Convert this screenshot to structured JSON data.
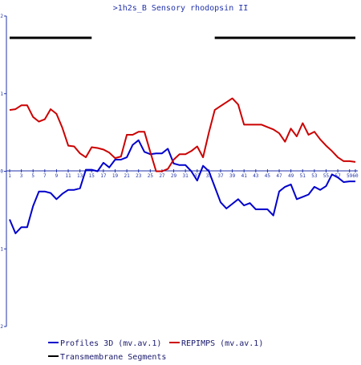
{
  "chart_data": {
    "type": "line",
    "title": ">1h2s_B Sensory rhodopsin II",
    "xlabel": "",
    "ylabel": "",
    "x_ticks": [
      "1",
      "3",
      "5",
      "7",
      "9",
      "11",
      "13",
      "15",
      "17",
      "19",
      "21",
      "23",
      "25",
      "27",
      "29",
      "31",
      "33",
      "35",
      "37",
      "39",
      "41",
      "43",
      "45",
      "47",
      "49",
      "51",
      "53",
      "55",
      "57",
      "59",
      "60"
    ],
    "xlim": [
      1,
      60
    ],
    "ylim": [
      -2,
      2
    ],
    "y_ticks": [
      "2",
      "1",
      "0",
      "-1",
      "-2"
    ],
    "grid": false,
    "legend_position": "bottom-left",
    "series": [
      {
        "name": "Profiles 3D (mv.av.1)",
        "color": "#0000cc",
        "points": [
          [
            1,
            -0.62
          ],
          [
            2,
            -0.8
          ],
          [
            3,
            -0.72
          ],
          [
            4,
            -0.72
          ],
          [
            5,
            -0.45
          ],
          [
            6,
            -0.26
          ],
          [
            7,
            -0.26
          ],
          [
            8,
            -0.28
          ],
          [
            9,
            -0.36
          ],
          [
            10,
            -0.29
          ],
          [
            11,
            -0.24
          ],
          [
            12,
            -0.24
          ],
          [
            13,
            -0.22
          ],
          [
            14,
            0.02
          ],
          [
            15,
            0.02
          ],
          [
            16,
            0.0
          ],
          [
            17,
            0.11
          ],
          [
            18,
            0.05
          ],
          [
            19,
            0.15
          ],
          [
            20,
            0.15
          ],
          [
            21,
            0.18
          ],
          [
            22,
            0.34
          ],
          [
            23,
            0.4
          ],
          [
            24,
            0.25
          ],
          [
            25,
            0.22
          ],
          [
            26,
            0.23
          ],
          [
            27,
            0.23
          ],
          [
            28,
            0.29
          ],
          [
            29,
            0.1
          ],
          [
            30,
            0.08
          ],
          [
            31,
            0.08
          ],
          [
            32,
            0.0
          ],
          [
            33,
            -0.12
          ],
          [
            34,
            0.07
          ],
          [
            35,
            0.0
          ],
          [
            36,
            -0.2
          ],
          [
            37,
            -0.4
          ],
          [
            38,
            -0.48
          ],
          [
            39,
            -0.42
          ],
          [
            40,
            -0.36
          ],
          [
            41,
            -0.44
          ],
          [
            42,
            -0.41
          ],
          [
            43,
            -0.49
          ],
          [
            44,
            -0.49
          ],
          [
            45,
            -0.49
          ],
          [
            46,
            -0.57
          ],
          [
            47,
            -0.26
          ],
          [
            48,
            -0.2
          ],
          [
            49,
            -0.17
          ],
          [
            50,
            -0.36
          ],
          [
            51,
            -0.33
          ],
          [
            52,
            -0.3
          ],
          [
            53,
            -0.2
          ],
          [
            54,
            -0.24
          ],
          [
            55,
            -0.19
          ],
          [
            56,
            -0.04
          ],
          [
            57,
            -0.08
          ],
          [
            58,
            -0.14
          ],
          [
            59,
            -0.13
          ],
          [
            60,
            -0.13
          ]
        ]
      },
      {
        "name": "REPIMPS (mv.av.1)",
        "color": "#cc0000",
        "points": [
          [
            1,
            0.79
          ],
          [
            2,
            0.8
          ],
          [
            3,
            0.85
          ],
          [
            4,
            0.85
          ],
          [
            5,
            0.7
          ],
          [
            6,
            0.64
          ],
          [
            7,
            0.67
          ],
          [
            8,
            0.8
          ],
          [
            9,
            0.74
          ],
          [
            10,
            0.56
          ],
          [
            11,
            0.33
          ],
          [
            12,
            0.32
          ],
          [
            13,
            0.23
          ],
          [
            14,
            0.18
          ],
          [
            15,
            0.31
          ],
          [
            16,
            0.3
          ],
          [
            17,
            0.28
          ],
          [
            18,
            0.24
          ],
          [
            19,
            0.17
          ],
          [
            20,
            0.19
          ],
          [
            21,
            0.47
          ],
          [
            22,
            0.47
          ],
          [
            23,
            0.51
          ],
          [
            24,
            0.51
          ],
          [
            25,
            0.25
          ],
          [
            26,
            0.0
          ],
          [
            27,
            0.0
          ],
          [
            28,
            0.03
          ],
          [
            29,
            0.15
          ],
          [
            30,
            0.22
          ],
          [
            31,
            0.22
          ],
          [
            32,
            0.26
          ],
          [
            33,
            0.32
          ],
          [
            34,
            0.18
          ],
          [
            35,
            0.5
          ],
          [
            36,
            0.79
          ],
          [
            37,
            0.84
          ],
          [
            38,
            0.89
          ],
          [
            39,
            0.94
          ],
          [
            40,
            0.86
          ],
          [
            41,
            0.6
          ],
          [
            42,
            0.6
          ],
          [
            43,
            0.6
          ],
          [
            44,
            0.6
          ],
          [
            45,
            0.57
          ],
          [
            46,
            0.54
          ],
          [
            47,
            0.49
          ],
          [
            48,
            0.38
          ],
          [
            49,
            0.55
          ],
          [
            50,
            0.45
          ],
          [
            51,
            0.62
          ],
          [
            52,
            0.47
          ],
          [
            53,
            0.51
          ],
          [
            54,
            0.41
          ],
          [
            55,
            0.33
          ],
          [
            56,
            0.26
          ],
          [
            57,
            0.18
          ],
          [
            58,
            0.13
          ],
          [
            59,
            0.13
          ],
          [
            60,
            0.12
          ]
        ]
      },
      {
        "name": "Transmembrane Segments",
        "color": "#000000",
        "segments": [
          [
            1,
            15
          ],
          [
            36,
            60
          ]
        ],
        "y": 1.72
      }
    ]
  }
}
